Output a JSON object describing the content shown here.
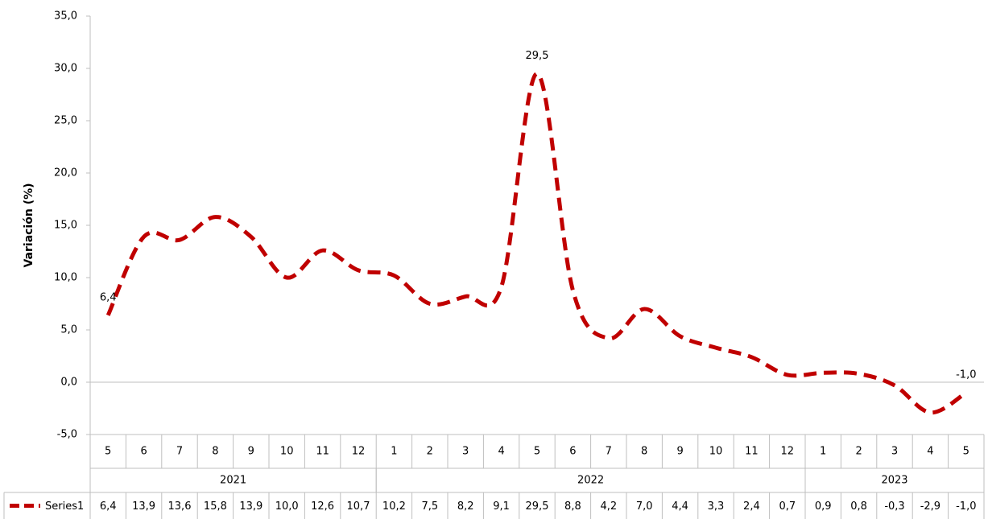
{
  "chart_data": {
    "type": "line",
    "y_label": "Variación (%)",
    "categories": [
      "5",
      "6",
      "7",
      "8",
      "9",
      "10",
      "11",
      "12",
      "1",
      "2",
      "3",
      "4",
      "5",
      "6",
      "7",
      "8",
      "9",
      "10",
      "11",
      "12",
      "1",
      "2",
      "3",
      "4",
      "5"
    ],
    "groups": [
      {
        "name": "2021",
        "size": 8
      },
      {
        "name": "2022",
        "size": 12
      },
      {
        "name": "2023",
        "size": 5
      }
    ],
    "series": [
      {
        "name": "Series1",
        "color": "#c00000",
        "values": [
          6.4,
          13.9,
          13.6,
          15.8,
          13.9,
          10.0,
          12.6,
          10.7,
          10.2,
          7.5,
          8.2,
          9.1,
          29.5,
          8.8,
          4.2,
          7.0,
          4.4,
          3.3,
          2.4,
          0.7,
          0.9,
          0.8,
          -0.3,
          -2.9,
          -1.0
        ],
        "value_labels": [
          "6,4",
          "13,9",
          "13,6",
          "15,8",
          "13,9",
          "10,0",
          "12,6",
          "10,7",
          "10,2",
          "7,5",
          "8,2",
          "9,1",
          "29,5",
          "8,8",
          "4,2",
          "7,0",
          "4,4",
          "3,3",
          "2,4",
          "0,7",
          "0,9",
          "0,8",
          "-0,3",
          "-2,9",
          "-1,0"
        ]
      }
    ],
    "labeled_points": [
      0,
      12,
      24
    ],
    "ylim": [
      -5,
      35
    ],
    "yticks": [
      {
        "value": -5,
        "label": "-5,0"
      },
      {
        "value": 0,
        "label": "0,0"
      },
      {
        "value": 5,
        "label": "5,0"
      },
      {
        "value": 10,
        "label": "10,0"
      },
      {
        "value": 15,
        "label": "15,0"
      },
      {
        "value": 20,
        "label": "20,0"
      },
      {
        "value": 25,
        "label": "25,0"
      },
      {
        "value": 30,
        "label": "30,0"
      },
      {
        "value": 35,
        "label": "35,0"
      }
    ],
    "data_table": true,
    "grid": false
  }
}
